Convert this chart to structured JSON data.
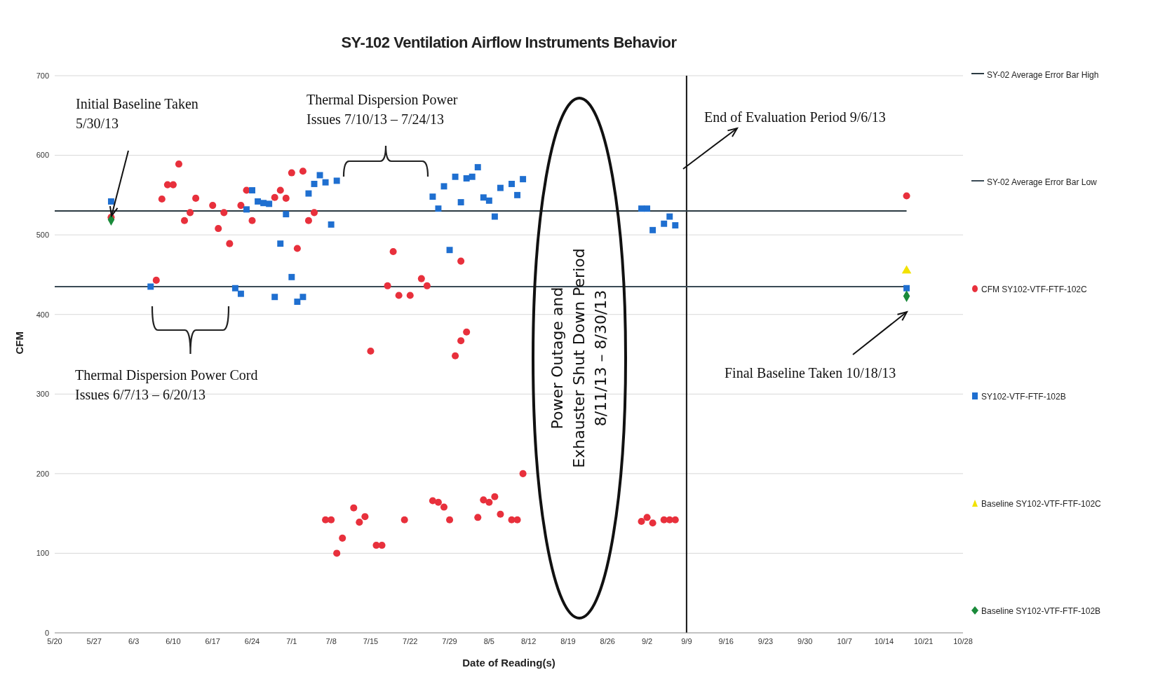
{
  "chart_data": {
    "type": "scatter",
    "title": "SY-102 Ventilation Airflow Instruments Behavior",
    "xlabel": "Date of Reading(s)",
    "ylabel": "CFM",
    "xlim": [
      "--05-20",
      "--10-28"
    ],
    "xticks": [
      {
        "value": "--05-20",
        "label": "5/20"
      },
      {
        "value": "--05-27",
        "label": "5/27"
      },
      {
        "value": "--06-03",
        "label": "6/3"
      },
      {
        "value": "--06-10",
        "label": "6/10"
      },
      {
        "value": "--06-17",
        "label": "6/17"
      },
      {
        "value": "--06-24",
        "label": "6/24"
      },
      {
        "value": "--07-01",
        "label": "7/1"
      },
      {
        "value": "--07-08",
        "label": "7/8"
      },
      {
        "value": "--07-15",
        "label": "7/15"
      },
      {
        "value": "--07-22",
        "label": "7/22"
      },
      {
        "value": "--07-29",
        "label": "7/29"
      },
      {
        "value": "--08-05",
        "label": "8/5"
      },
      {
        "value": "--08-12",
        "label": "8/12"
      },
      {
        "value": "--08-19",
        "label": "8/19"
      },
      {
        "value": "--08-26",
        "label": "8/26"
      },
      {
        "value": "--09-02",
        "label": "9/2"
      },
      {
        "value": "--09-09",
        "label": "9/9"
      },
      {
        "value": "--09-16",
        "label": "9/16"
      },
      {
        "value": "--09-23",
        "label": "9/23"
      },
      {
        "value": "--09-30",
        "label": "9/30"
      },
      {
        "value": "--10-07",
        "label": "10/7"
      },
      {
        "value": "--10-14",
        "label": "10/14"
      },
      {
        "value": "--10-21",
        "label": "10/21"
      },
      {
        "value": "--10-28",
        "label": "10/28"
      }
    ],
    "ylim": [
      0,
      700
    ],
    "yticks": [
      0,
      100,
      200,
      300,
      400,
      500,
      600,
      700
    ],
    "grid": "y",
    "legend": "right",
    "ref_lines": [
      {
        "axis": "x",
        "value": "--09-09",
        "color": "#111111"
      }
    ],
    "annotations": [
      "Initial Baseline Taken\n5/30/13",
      "Thermal Dispersion Power\nIssues 7/10/13 – 7/24/13",
      "End of Evaluation Period 9/6/13",
      "Power Outage and\nExhauster Shut Down Period\n8/11/13 – 8/30/13",
      "Thermal Dispersion Power Cord\nIssues 6/7/13 – 6/20/13",
      "Final Baseline Taken 10/18/13"
    ],
    "series": [
      {
        "name": "SY-02 Average Error Bar High",
        "type": "line",
        "color": "#2b3a42",
        "marker": "none",
        "line_style": "solid",
        "x": [
          "--05-20",
          "--10-18"
        ],
        "values": [
          530,
          530
        ]
      },
      {
        "name": "SY-02 Average Error Bar Low",
        "type": "line",
        "color": "#3a4a55",
        "marker": "none",
        "line_style": "solid",
        "x": [
          "--05-20",
          "--10-18"
        ],
        "values": [
          435,
          435
        ]
      },
      {
        "name": "CFM SY102-VTF-FTF-102C",
        "color": "#e8303c",
        "marker": "circle",
        "x": [
          "--05-30",
          "--06-07",
          "--06-08",
          "--06-09",
          "--06-10",
          "--06-11",
          "--06-12",
          "--06-13",
          "--06-14",
          "--06-17",
          "--06-18",
          "--06-19",
          "--06-20",
          "--06-22",
          "--06-23",
          "--06-24",
          "--06-28",
          "--06-29",
          "--06-30",
          "--07-01",
          "--07-02",
          "--07-03",
          "--07-04",
          "--07-05",
          "--07-07",
          "--07-08",
          "--07-09",
          "--07-10",
          "--07-12",
          "--07-13",
          "--07-14",
          "--07-15",
          "--07-16",
          "--07-17",
          "--07-18",
          "--07-19",
          "--07-20",
          "--07-21",
          "--07-22",
          "--07-24",
          "--07-25",
          "--07-26",
          "--07-27",
          "--07-28",
          "--07-29",
          "--07-30",
          "--07-31",
          "--07-31",
          "--08-01",
          "--08-03",
          "--08-04",
          "--08-05",
          "--08-06",
          "--08-07",
          "--08-09",
          "--08-10",
          "--08-11",
          "--09-01",
          "--09-02",
          "--09-03",
          "--09-05",
          "--09-06",
          "--09-07",
          "--10-18"
        ],
        "values": [
          522,
          443,
          545,
          563,
          563,
          589,
          518,
          528,
          546,
          537,
          508,
          528,
          489,
          537,
          556,
          518,
          547,
          556,
          546,
          578,
          483,
          580,
          518,
          528,
          142,
          142,
          100,
          119,
          157,
          139,
          146,
          354,
          110,
          110,
          436,
          479,
          424,
          142,
          424,
          445,
          436,
          166,
          164,
          158,
          142,
          348,
          367,
          467,
          378,
          145,
          167,
          164,
          171,
          149,
          142,
          142,
          200,
          140,
          145,
          138,
          142,
          142,
          142,
          549
        ]
      },
      {
        "name": "SY102-VTF-FTF-102B",
        "color": "#1f6fd0",
        "marker": "square",
        "x": [
          "--05-30",
          "--06-06",
          "--06-21",
          "--06-22",
          "--06-23",
          "--06-24",
          "--06-25",
          "--06-26",
          "--06-27",
          "--06-28",
          "--06-29",
          "--06-30",
          "--07-01",
          "--07-02",
          "--07-03",
          "--07-04",
          "--07-05",
          "--07-06",
          "--07-07",
          "--07-08",
          "--07-09",
          "--07-26",
          "--07-27",
          "--07-28",
          "--07-29",
          "--07-30",
          "--07-31",
          "--08-01",
          "--08-02",
          "--08-03",
          "--08-04",
          "--08-05",
          "--08-06",
          "--08-07",
          "--08-09",
          "--08-10",
          "--08-11",
          "--09-01",
          "--09-02",
          "--09-03",
          "--09-05",
          "--09-06",
          "--09-07",
          "--10-18"
        ],
        "values": [
          542,
          435,
          433,
          426,
          532,
          556,
          542,
          540,
          539,
          422,
          489,
          526,
          447,
          416,
          422,
          552,
          564,
          575,
          566,
          513,
          568,
          548,
          533,
          561,
          481,
          573,
          541,
          571,
          573,
          585,
          547,
          543,
          523,
          559,
          564,
          550,
          570,
          533,
          533,
          506,
          514,
          523,
          512,
          433
        ]
      },
      {
        "name": "Baseline SY102-VTF-FTF-102C",
        "color": "#f2e200",
        "marker": "triangle",
        "x": [
          "--10-18"
        ],
        "values": [
          455
        ]
      },
      {
        "name": "Baseline SY102-VTF-FTF-102B",
        "color": "#1a8a3a",
        "marker": "diamond",
        "x": [
          "--05-30",
          "--10-18"
        ],
        "values": [
          519,
          423
        ]
      }
    ]
  }
}
